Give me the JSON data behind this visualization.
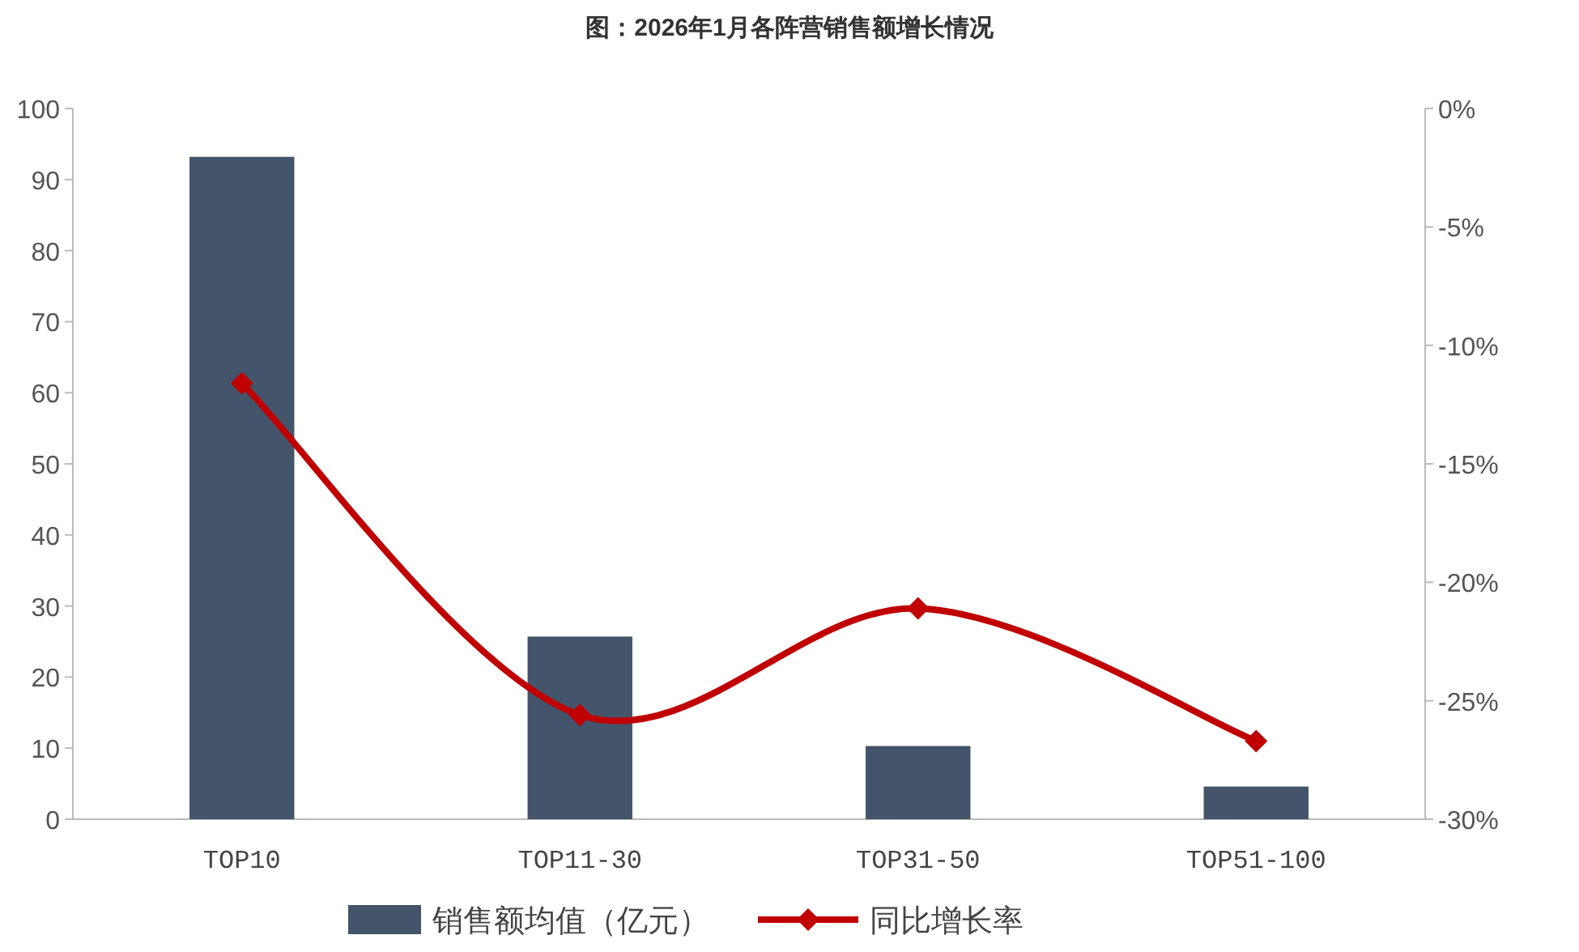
{
  "chart_data": {
    "type": "bar",
    "title": "图：2026年1月各阵营销售额增长情况",
    "categories": [
      "TOP10",
      "TOP11-30",
      "TOP31-50",
      "TOP51-100"
    ],
    "series": [
      {
        "name": "销售额均值（亿元）",
        "color": "#44546a",
        "values": [
          93.2,
          25.7,
          10.3,
          4.6
        ]
      },
      {
        "name": "同比增长率",
        "type": "line",
        "axis": "y2",
        "color": "#c00000",
        "values": [
          -11.6,
          -25.6,
          -21.1,
          -26.7
        ]
      }
    ],
    "ylim": [
      0,
      100
    ],
    "yticks": [
      0,
      10,
      20,
      30,
      40,
      50,
      60,
      70,
      80,
      90,
      100
    ],
    "y2lim": [
      -30,
      0
    ],
    "y2ticks": [
      {
        "value": 0,
        "label": "0%"
      },
      {
        "value": -5,
        "label": "-5%"
      },
      {
        "value": -10,
        "label": "-10%"
      },
      {
        "value": -15,
        "label": "-15%"
      },
      {
        "value": -20,
        "label": "-20%"
      },
      {
        "value": -25,
        "label": "-25%"
      },
      {
        "value": -30,
        "label": "-30%"
      }
    ],
    "legend": "bottom",
    "marker": "diamond",
    "grid": false
  }
}
